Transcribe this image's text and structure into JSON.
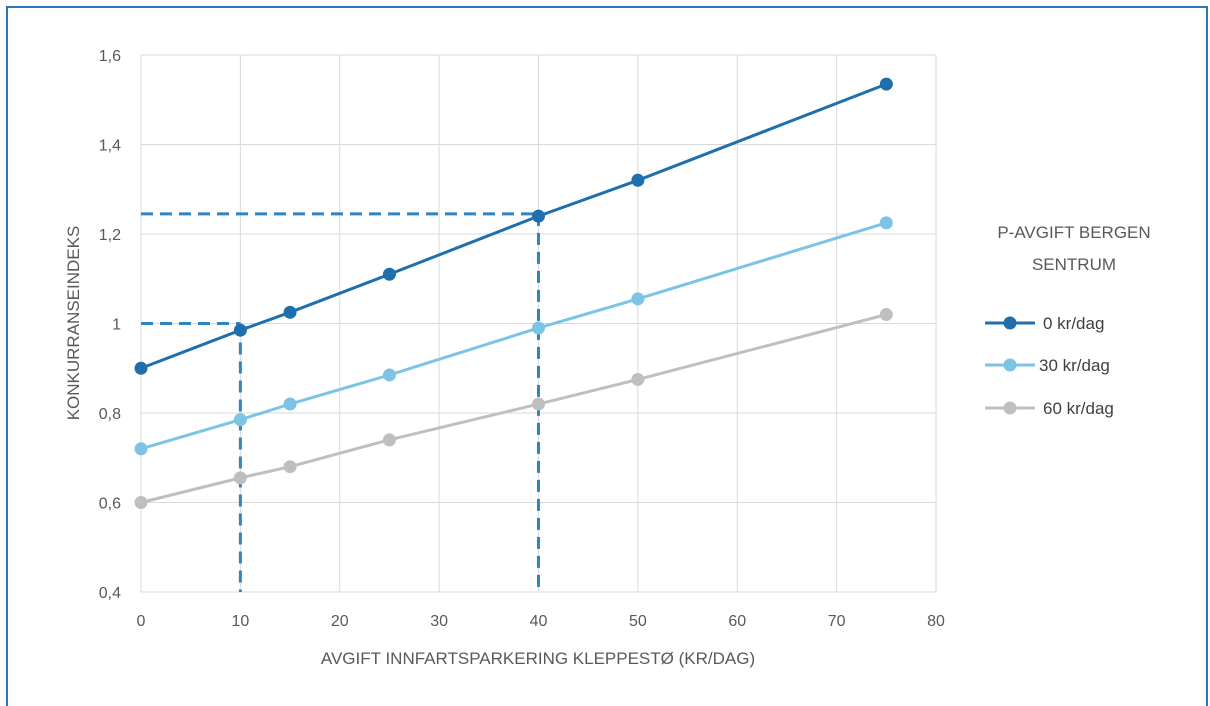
{
  "chart_data": {
    "type": "line",
    "title": "",
    "xlabel": "AVGIFT INNFARTSPARKERING KLEPPESTØ (KR/DAG)",
    "ylabel": "KONKURRANSEINDEKS",
    "xlim": [
      0,
      80
    ],
    "ylim": [
      0.4,
      1.6
    ],
    "xticks": [
      0,
      10,
      20,
      30,
      40,
      50,
      60,
      70,
      80
    ],
    "yticks": [
      0.4,
      0.6,
      0.8,
      1.0,
      1.2,
      1.4,
      1.6
    ],
    "xtick_labels": [
      "0",
      "10",
      "20",
      "30",
      "40",
      "50",
      "60",
      "70",
      "80"
    ],
    "ytick_labels": [
      "0,4",
      "0,6",
      "0,8",
      "1",
      "1,2",
      "1,4",
      "1,6"
    ],
    "grid": true,
    "legend_title_lines": [
      "P-AVGIFT BERGEN",
      "SENTRUM"
    ],
    "legend_position": "right",
    "series": [
      {
        "name": "0 kr/dag",
        "color": "#1f6fad",
        "x": [
          0,
          10,
          15,
          25,
          40,
          50,
          75
        ],
        "y": [
          0.9,
          0.985,
          1.025,
          1.11,
          1.24,
          1.32,
          1.535
        ]
      },
      {
        "name": "30 kr/dag",
        "color": "#7cc3e6",
        "x": [
          0,
          10,
          15,
          25,
          40,
          50,
          75
        ],
        "y": [
          0.72,
          0.785,
          0.82,
          0.885,
          0.99,
          1.055,
          1.225
        ]
      },
      {
        "name": "60 kr/dag",
        "color": "#bfbfbf",
        "x": [
          0,
          10,
          15,
          25,
          40,
          50,
          75
        ],
        "y": [
          0.6,
          0.655,
          0.68,
          0.74,
          0.82,
          0.875,
          1.02
        ]
      }
    ],
    "reference_lines": [
      {
        "x": 10,
        "y": 1.0,
        "color": "#2e86c1"
      },
      {
        "x": 40,
        "y": 1.245,
        "color": "#2e86c1"
      }
    ]
  }
}
